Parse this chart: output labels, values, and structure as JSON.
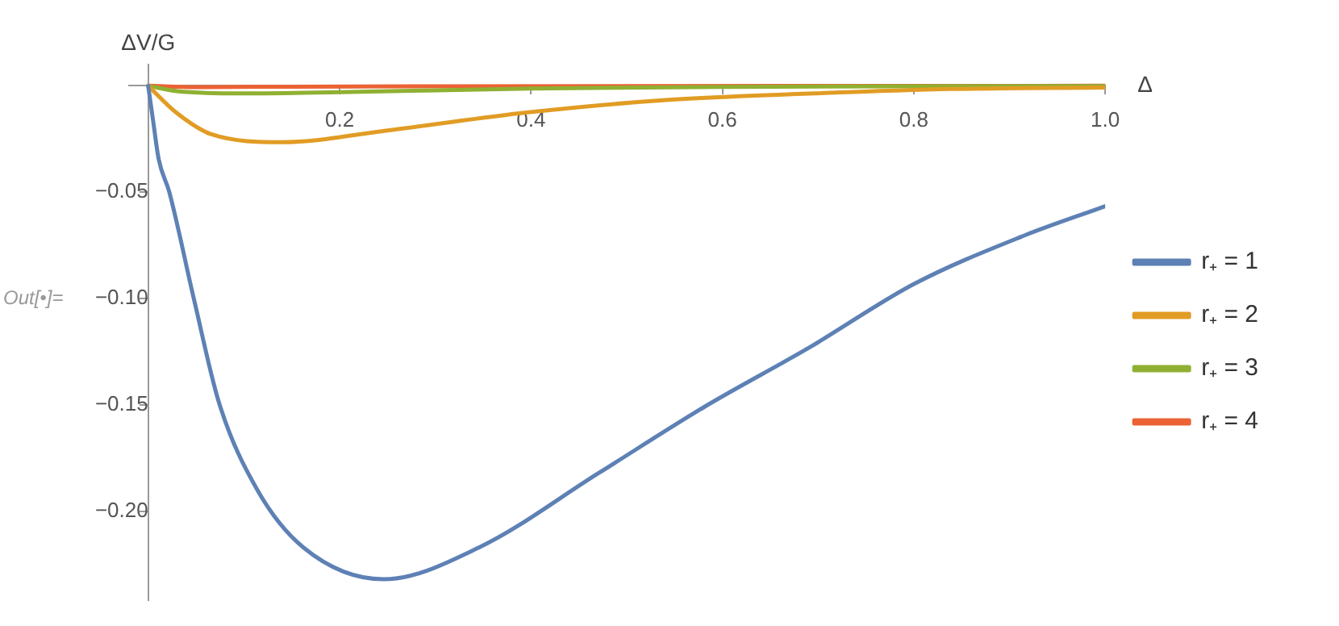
{
  "chart_data": {
    "type": "line",
    "xlabel": "Δ",
    "ylabel": "ΔV/G",
    "xlim": [
      -0.02,
      1.0
    ],
    "ylim": [
      -0.242,
      0.01
    ],
    "xticks": [
      0.2,
      0.4,
      0.6,
      0.8,
      {
        "value": 1.0,
        "label": "1.0"
      }
    ],
    "yticks": [
      {
        "value": 0,
        "label": null
      },
      {
        "value": -0.05,
        "label": "−0.05"
      },
      {
        "value": -0.1,
        "label": "−0.10"
      },
      {
        "value": -0.15,
        "label": "−0.15"
      },
      {
        "value": -0.2,
        "label": "−0.20"
      }
    ],
    "grid": false,
    "legend": "right",
    "marker": "none",
    "line_style": "solid",
    "annotations": [
      "Out[•]="
    ],
    "series": [
      {
        "name": "r₊ = 1",
        "color": "#5e81b5",
        "x": [
          0,
          0.005,
          0.011,
          0.022,
          0.048,
          0.074,
          0.114,
          0.162,
          0.246,
          0.346,
          0.471,
          0.581,
          0.691,
          0.801,
          0.912,
          1.0
        ],
        "values": [
          0,
          -0.016,
          -0.0346,
          -0.0499,
          -0.1007,
          -0.149,
          -0.19,
          -0.217,
          -0.232,
          -0.217,
          -0.182,
          -0.151,
          -0.123,
          -0.093,
          -0.071,
          -0.0566
        ]
      },
      {
        "name": "r₊ = 2",
        "color": "#e19c24",
        "x": [
          0,
          0.029,
          0.066,
          0.14,
          0.25,
          0.397,
          0.544,
          0.69,
          0.84,
          1.0
        ],
        "values": [
          0,
          -0.0125,
          -0.0228,
          -0.0265,
          -0.021,
          -0.0125,
          -0.0066,
          -0.0037,
          -0.0015,
          -0.0008
        ]
      },
      {
        "name": "r₊ = 3",
        "color": "#8fb032",
        "x": [
          0,
          0.03,
          0.1,
          0.2,
          0.4,
          0.6,
          1.0
        ],
        "values": [
          0,
          -0.0025,
          -0.0036,
          -0.003,
          -0.0013,
          -0.0005,
          -0.0001
        ]
      },
      {
        "name": "r₊ = 4",
        "color": "#eb6235",
        "x": [
          0,
          0.05,
          0.15,
          0.3,
          1.0
        ],
        "values": [
          0,
          -0.0006,
          -0.0004,
          -0.0002,
          0
        ]
      }
    ]
  }
}
